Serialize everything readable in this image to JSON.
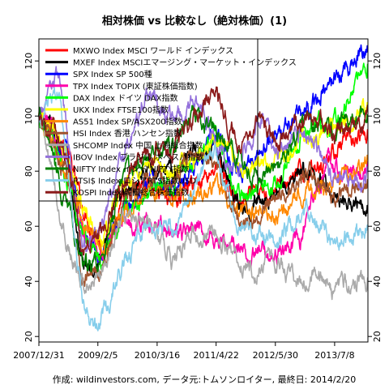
{
  "chart_data": {
    "type": "line",
    "title": "相対株価 vs 比較なし（絶対株価）(1)",
    "caption": "作成: wildinvestors.com, データ元:トムソンロイター, 最終日: 2014/2/20",
    "x_start": "2007-12-31",
    "x_end": "2014-02-20",
    "x_ticks": [
      "2007/12/31",
      "2009/2/5",
      "2010/3/16",
      "2011/4/22",
      "2012/5/30",
      "2013/7/8"
    ],
    "x_tick_dates": [
      "2007-12-31",
      "2009-02-05",
      "2010-03-16",
      "2011-04-22",
      "2012-05-30",
      "2013-07-08"
    ],
    "ylim": [
      18,
      128
    ],
    "y_ticks": [
      20,
      40,
      60,
      80,
      100,
      120
    ],
    "grid": false,
    "legend_position": "top-left",
    "series": [
      {
        "name": "MXWO Index MSCI ワールド インデックス",
        "color": "#ff0000",
        "points": [
          [
            "2007-12-31",
            100
          ],
          [
            "2008-06-30",
            90
          ],
          [
            "2008-10-15",
            68
          ],
          [
            "2009-03-09",
            52
          ],
          [
            "2009-06-30",
            65
          ],
          [
            "2010-01-01",
            76
          ],
          [
            "2010-06-30",
            70
          ],
          [
            "2011-04-22",
            82
          ],
          [
            "2011-10-01",
            68
          ],
          [
            "2012-05-30",
            74
          ],
          [
            "2013-01-01",
            80
          ],
          [
            "2013-07-08",
            88
          ],
          [
            "2014-02-20",
            92
          ]
        ]
      },
      {
        "name": "MXEF Index MSCIエマージング・マーケット・インデックス",
        "color": "#000000",
        "points": [
          [
            "2007-12-31",
            100
          ],
          [
            "2008-06-30",
            85
          ],
          [
            "2008-10-27",
            45
          ],
          [
            "2009-03-09",
            50
          ],
          [
            "2009-06-30",
            70
          ],
          [
            "2010-01-01",
            82
          ],
          [
            "2010-06-30",
            78
          ],
          [
            "2010-11-01",
            88
          ],
          [
            "2011-04-22",
            86
          ],
          [
            "2011-10-01",
            68
          ],
          [
            "2012-05-30",
            72
          ],
          [
            "2013-01-01",
            80
          ],
          [
            "2013-07-08",
            70
          ],
          [
            "2014-02-20",
            70
          ]
        ]
      },
      {
        "name": "SPX Index SP 500種",
        "color": "#0000ff",
        "points": [
          [
            "2007-12-31",
            100
          ],
          [
            "2008-06-30",
            87
          ],
          [
            "2008-11-20",
            55
          ],
          [
            "2009-03-09",
            46
          ],
          [
            "2009-06-30",
            63
          ],
          [
            "2010-01-01",
            77
          ],
          [
            "2010-06-30",
            73
          ],
          [
            "2011-04-22",
            93
          ],
          [
            "2011-10-01",
            78
          ],
          [
            "2012-05-30",
            93
          ],
          [
            "2013-01-01",
            102
          ],
          [
            "2013-07-08",
            114
          ],
          [
            "2014-02-20",
            125
          ]
        ]
      },
      {
        "name": "TPX Index TOPIX (東証株価指数)",
        "color": "#ff00aa",
        "points": [
          [
            "2007-12-31",
            100
          ],
          [
            "2008-06-30",
            87
          ],
          [
            "2008-10-27",
            55
          ],
          [
            "2009-03-09",
            50
          ],
          [
            "2009-06-30",
            62
          ],
          [
            "2010-01-01",
            62
          ],
          [
            "2010-06-30",
            58
          ],
          [
            "2011-03-15",
            57
          ],
          [
            "2011-10-01",
            51
          ],
          [
            "2012-05-30",
            50
          ],
          [
            "2012-11-15",
            54
          ],
          [
            "2013-05-22",
            85
          ],
          [
            "2013-07-08",
            79
          ],
          [
            "2014-02-20",
            80
          ]
        ]
      },
      {
        "name": "DAX Index ドイツ DAX指数",
        "color": "#00ff00",
        "points": [
          [
            "2007-12-31",
            100
          ],
          [
            "2008-06-30",
            80
          ],
          [
            "2008-10-27",
            58
          ],
          [
            "2009-03-09",
            46
          ],
          [
            "2009-06-30",
            62
          ],
          [
            "2010-01-01",
            73
          ],
          [
            "2010-06-30",
            75
          ],
          [
            "2011-04-22",
            95
          ],
          [
            "2011-09-12",
            70
          ],
          [
            "2012-05-30",
            77
          ],
          [
            "2013-01-01",
            95
          ],
          [
            "2013-07-08",
            98
          ],
          [
            "2014-02-20",
            118
          ]
        ]
      },
      {
        "name": "UKX Index FTSE100指数",
        "color": "#ffff00",
        "points": [
          [
            "2007-12-31",
            100
          ],
          [
            "2008-06-30",
            87
          ],
          [
            "2008-10-27",
            66
          ],
          [
            "2009-03-09",
            52
          ],
          [
            "2009-06-30",
            72
          ],
          [
            "2010-01-01",
            84
          ],
          [
            "2010-06-30",
            78
          ],
          [
            "2011-04-22",
            92
          ],
          [
            "2011-10-01",
            82
          ],
          [
            "2012-05-30",
            82
          ],
          [
            "2013-01-01",
            92
          ],
          [
            "2013-07-08",
            98
          ],
          [
            "2014-02-20",
            103
          ]
        ]
      },
      {
        "name": "AS51 Index SP/ASX200指数",
        "color": "#ff8800",
        "points": [
          [
            "2007-12-31",
            100
          ],
          [
            "2008-06-30",
            80
          ],
          [
            "2008-10-27",
            62
          ],
          [
            "2009-03-09",
            52
          ],
          [
            "2009-06-30",
            62
          ],
          [
            "2010-01-01",
            73
          ],
          [
            "2010-06-30",
            70
          ],
          [
            "2011-04-22",
            75
          ],
          [
            "2011-10-01",
            65
          ],
          [
            "2012-05-30",
            65
          ],
          [
            "2013-01-01",
            73
          ],
          [
            "2013-07-08",
            76
          ],
          [
            "2014-02-20",
            83
          ]
        ]
      },
      {
        "name": "HSI Index 香港 ハンセン指数",
        "color": "#a0522d",
        "points": [
          [
            "2007-12-31",
            100
          ],
          [
            "2008-06-30",
            80
          ],
          [
            "2008-10-27",
            40
          ],
          [
            "2009-03-09",
            45
          ],
          [
            "2009-06-30",
            65
          ],
          [
            "2010-01-01",
            78
          ],
          [
            "2010-06-30",
            75
          ],
          [
            "2010-11-01",
            88
          ],
          [
            "2011-04-22",
            82
          ],
          [
            "2011-10-04",
            60
          ],
          [
            "2012-05-30",
            70
          ],
          [
            "2013-01-01",
            80
          ],
          [
            "2013-07-08",
            72
          ],
          [
            "2014-02-20",
            76
          ]
        ]
      },
      {
        "name": "SHCOMP Index 中国 上海総合指数",
        "color": "#aaaaaa",
        "points": [
          [
            "2007-12-31",
            100
          ],
          [
            "2008-06-30",
            55
          ],
          [
            "2008-10-27",
            38
          ],
          [
            "2009-03-09",
            45
          ],
          [
            "2009-08-03",
            65
          ],
          [
            "2010-01-01",
            62
          ],
          [
            "2010-06-30",
            48
          ],
          [
            "2010-11-08",
            57
          ],
          [
            "2011-04-22",
            56
          ],
          [
            "2012-01-06",
            44
          ],
          [
            "2012-05-30",
            47
          ],
          [
            "2012-12-03",
            38
          ],
          [
            "2013-02-06",
            46
          ],
          [
            "2013-06-25",
            37
          ],
          [
            "2014-02-20",
            40
          ]
        ]
      },
      {
        "name": "IBOV Index ブラジル ボベスパ指数",
        "color": "#9370db",
        "points": [
          [
            "2007-12-31",
            100
          ],
          [
            "2008-05-20",
            115
          ],
          [
            "2008-10-27",
            50
          ],
          [
            "2009-03-09",
            60
          ],
          [
            "2009-06-30",
            82
          ],
          [
            "2010-01-01",
            110
          ],
          [
            "2010-06-30",
            98
          ],
          [
            "2011-01-01",
            105
          ],
          [
            "2011-08-08",
            80
          ],
          [
            "2012-03-01",
            100
          ],
          [
            "2012-05-30",
            87
          ],
          [
            "2013-01-01",
            95
          ],
          [
            "2013-07-08",
            75
          ],
          [
            "2014-02-20",
            78
          ]
        ]
      },
      {
        "name": "NIFTY Index インド NIFTY指数",
        "color": "#008000",
        "points": [
          [
            "2007-12-31",
            100
          ],
          [
            "2008-06-30",
            70
          ],
          [
            "2008-10-27",
            46
          ],
          [
            "2009-03-09",
            45
          ],
          [
            "2009-06-30",
            75
          ],
          [
            "2010-01-01",
            87
          ],
          [
            "2010-06-30",
            88
          ],
          [
            "2010-11-05",
            102
          ],
          [
            "2011-04-22",
            95
          ],
          [
            "2011-12-20",
            78
          ],
          [
            "2012-05-30",
            80
          ],
          [
            "2013-01-01",
            98
          ],
          [
            "2013-07-08",
            95
          ],
          [
            "2014-02-20",
            102
          ]
        ]
      },
      {
        "name": "RTSI$ Index ロシアRTS指数USD",
        "color": "#87ceeb",
        "points": [
          [
            "2007-12-31",
            100
          ],
          [
            "2008-05-19",
            110
          ],
          [
            "2008-10-27",
            30
          ],
          [
            "2009-01-23",
            22
          ],
          [
            "2009-06-30",
            42
          ],
          [
            "2010-01-01",
            62
          ],
          [
            "2010-06-30",
            58
          ],
          [
            "2011-04-08",
            88
          ],
          [
            "2011-10-04",
            58
          ],
          [
            "2012-05-30",
            55
          ],
          [
            "2013-01-01",
            65
          ],
          [
            "2013-07-08",
            55
          ],
          [
            "2014-02-20",
            57
          ]
        ]
      },
      {
        "name": "KOSPI Index 韓国総合株価指数",
        "color": "#8b1a1a",
        "points": [
          [
            "2007-12-31",
            100
          ],
          [
            "2008-06-30",
            88
          ],
          [
            "2008-10-27",
            52
          ],
          [
            "2009-03-09",
            60
          ],
          [
            "2009-06-30",
            75
          ],
          [
            "2010-01-01",
            87
          ],
          [
            "2010-06-30",
            87
          ],
          [
            "2011-04-22",
            110
          ],
          [
            "2011-09-26",
            88
          ],
          [
            "2012-03-01",
            100
          ],
          [
            "2012-05-30",
            90
          ],
          [
            "2013-01-01",
            100
          ],
          [
            "2013-07-08",
            93
          ],
          [
            "2014-02-20",
            98
          ]
        ]
      }
    ]
  }
}
